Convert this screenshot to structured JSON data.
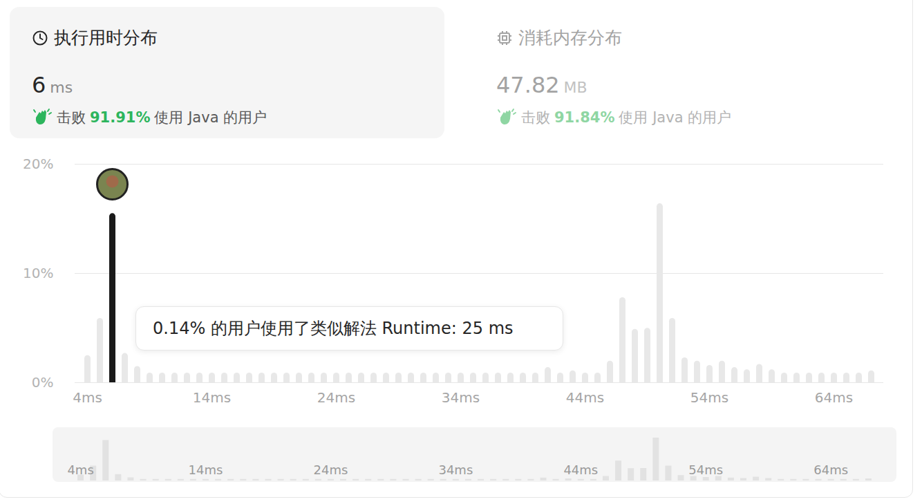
{
  "panels": [
    {
      "title": "执行用时分布",
      "value": 6,
      "unit": "ms",
      "beat_prefix": "击败",
      "beat": "91.91%",
      "beat_suffix": "使用 Java 的用户"
    },
    {
      "title": "消耗内存分布",
      "value": 47.82,
      "unit": "MB",
      "beat_prefix": "击败",
      "beat": "91.84%",
      "beat_suffix": "使用 Java 的用户"
    }
  ],
  "chart_data": {
    "type": "bar",
    "x": [
      4,
      5,
      6,
      7,
      8,
      9,
      10,
      11,
      12,
      13,
      14,
      15,
      16,
      17,
      18,
      19,
      20,
      21,
      22,
      23,
      24,
      25,
      26,
      27,
      28,
      29,
      30,
      31,
      32,
      33,
      34,
      35,
      36,
      37,
      38,
      39,
      40,
      41,
      42,
      43,
      44,
      45,
      46,
      47,
      48,
      49,
      50,
      51,
      52,
      53,
      54,
      55,
      56,
      57,
      58,
      59,
      60,
      61,
      62,
      63,
      64,
      65,
      66,
      67
    ],
    "values": [
      2.2,
      5.6,
      15.2,
      2.4,
      1.2,
      0.6,
      0.6,
      0.6,
      0.6,
      0.6,
      0.6,
      0.6,
      0.6,
      0.6,
      0.6,
      0.6,
      0.6,
      0.6,
      0.6,
      0.6,
      0.6,
      0.6,
      0.6,
      0.6,
      0.6,
      0.6,
      0.6,
      0.6,
      0.6,
      0.6,
      0.6,
      0.6,
      0.6,
      0.6,
      0.6,
      0.6,
      0.6,
      1.1,
      0.6,
      0.8,
      0.6,
      0.6,
      1.7,
      7.5,
      4.6,
      4.7,
      16.1,
      5.6,
      2.0,
      1.7,
      1.3,
      1.7,
      1.1,
      0.9,
      1.4,
      0.9,
      0.6,
      0.6,
      0.6,
      0.6,
      0.6,
      0.6,
      0.6,
      0.8
    ],
    "colors": [
      "#e8e8e8",
      "#e8e8e8",
      "#1a1a1a",
      "#e8e8e8",
      "#e8e8e8",
      "#e8e8e8",
      "#e8e8e8",
      "#e8e8e8",
      "#e8e8e8",
      "#e8e8e8",
      "#e8e8e8",
      "#e8e8e8",
      "#e8e8e8",
      "#e8e8e8",
      "#e8e8e8",
      "#e8e8e8",
      "#e8e8e8",
      "#e8e8e8",
      "#e8e8e8",
      "#e8e8e8",
      "#e8e8e8",
      "#e8e8e8",
      "#e8e8e8",
      "#e8e8e8",
      "#e8e8e8",
      "#e8e8e8",
      "#e8e8e8",
      "#e8e8e8",
      "#e8e8e8",
      "#e8e8e8",
      "#e8e8e8",
      "#e8e8e8",
      "#e8e8e8",
      "#e8e8e8",
      "#e8e8e8",
      "#e8e8e8",
      "#e8e8e8",
      "#e8e8e8",
      "#e8e8e8",
      "#e8e8e8",
      "#e8e8e8",
      "#e8e8e8",
      "#e8e8e8",
      "#e8e8e8",
      "#e8e8e8",
      "#e8e8e8",
      "#e8e8e8",
      "#e8e8e8",
      "#e8e8e8",
      "#e8e8e8",
      "#e8e8e8",
      "#e8e8e8",
      "#e8e8e8",
      "#e8e8e8",
      "#e8e8e8",
      "#e8e8e8",
      "#e8e8e8",
      "#e8e8e8",
      "#e8e8e8",
      "#e8e8e8",
      "#e8e8e8",
      "#e8e8e8",
      "#e8e8e8",
      "#e8e8e8"
    ],
    "xlim": [
      3,
      68
    ],
    "xticks": [
      {
        "value": 4,
        "label": "4ms"
      },
      {
        "value": 14,
        "label": "14ms"
      },
      {
        "value": 24,
        "label": "24ms"
      },
      {
        "value": 34,
        "label": "34ms"
      },
      {
        "value": 44,
        "label": "44ms"
      },
      {
        "value": 54,
        "label": "54ms"
      },
      {
        "value": 64,
        "label": "64ms"
      }
    ],
    "ylim": [
      0,
      20
    ],
    "yticks": [
      {
        "value": 0,
        "label": "0%"
      },
      {
        "value": 10,
        "label": "10%"
      },
      {
        "value": 20,
        "label": "20%"
      }
    ],
    "grid": true,
    "annotations": [
      "0.14% 的用户使用了类似解法 Runtime: 25 ms"
    ]
  }
}
